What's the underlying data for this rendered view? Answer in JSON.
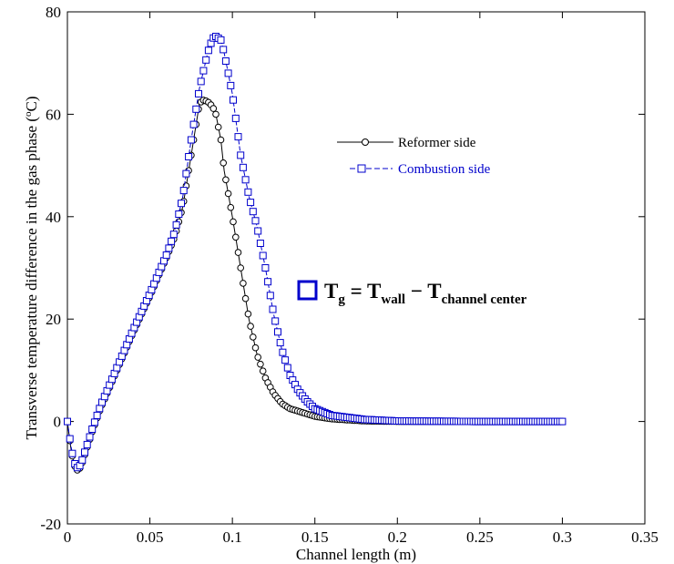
{
  "chart_data": {
    "type": "line",
    "xlabel": "Channel length (m)",
    "ylabel": "Transverse temperature difference in the gas phase (",
    "ylabel_sup": "o",
    "ylabel_unit": "C)",
    "xlim": [
      0,
      0.35
    ],
    "ylim": [
      -20,
      80
    ],
    "x_ticks": [
      "0",
      "0.05",
      "0.1",
      "0.15",
      "0.2",
      "0.25",
      "0.3",
      "0.35"
    ],
    "y_ticks": [
      "-20",
      "0",
      "20",
      "40",
      "60",
      "80"
    ],
    "grid": false,
    "legend_position": "upper-right",
    "series": [
      {
        "name": "Reformer side",
        "color": "#000000",
        "marker": "circle",
        "points": [
          [
            0,
            0
          ],
          [
            0.002,
            -5
          ],
          [
            0.004,
            -8.5
          ],
          [
            0.006,
            -9.5
          ],
          [
            0.008,
            -9
          ],
          [
            0.01,
            -7
          ],
          [
            0.015,
            -2
          ],
          [
            0.02,
            2.5
          ],
          [
            0.03,
            10
          ],
          [
            0.04,
            17.5
          ],
          [
            0.05,
            24.5
          ],
          [
            0.06,
            32
          ],
          [
            0.065,
            36
          ],
          [
            0.07,
            42
          ],
          [
            0.075,
            52
          ],
          [
            0.078,
            58
          ],
          [
            0.08,
            62
          ],
          [
            0.082,
            62.8
          ],
          [
            0.085,
            62.5
          ],
          [
            0.088,
            61.5
          ],
          [
            0.09,
            60
          ],
          [
            0.093,
            55
          ],
          [
            0.095,
            49
          ],
          [
            0.1,
            40
          ],
          [
            0.105,
            30
          ],
          [
            0.11,
            20
          ],
          [
            0.115,
            13
          ],
          [
            0.12,
            8.5
          ],
          [
            0.125,
            5.5
          ],
          [
            0.13,
            3.5
          ],
          [
            0.135,
            2.5
          ],
          [
            0.14,
            2
          ],
          [
            0.145,
            1.5
          ],
          [
            0.15,
            1
          ],
          [
            0.16,
            0.5
          ],
          [
            0.18,
            0.1
          ],
          [
            0.2,
            0
          ],
          [
            0.25,
            0
          ],
          [
            0.3,
            0
          ]
        ]
      },
      {
        "name": "Combustion side",
        "color": "#0000cc",
        "marker": "square",
        "points": [
          [
            0,
            0
          ],
          [
            0.002,
            -4.5
          ],
          [
            0.004,
            -8
          ],
          [
            0.006,
            -9
          ],
          [
            0.008,
            -8.5
          ],
          [
            0.01,
            -6.5
          ],
          [
            0.015,
            -1.5
          ],
          [
            0.02,
            3
          ],
          [
            0.03,
            10.5
          ],
          [
            0.04,
            18
          ],
          [
            0.05,
            25
          ],
          [
            0.06,
            32.5
          ],
          [
            0.065,
            37
          ],
          [
            0.07,
            44
          ],
          [
            0.075,
            55
          ],
          [
            0.08,
            65
          ],
          [
            0.085,
            72
          ],
          [
            0.088,
            74.8
          ],
          [
            0.09,
            75.2
          ],
          [
            0.093,
            74.5
          ],
          [
            0.095,
            72
          ],
          [
            0.1,
            64
          ],
          [
            0.105,
            52
          ],
          [
            0.11,
            44
          ],
          [
            0.115,
            38
          ],
          [
            0.12,
            30
          ],
          [
            0.125,
            21
          ],
          [
            0.13,
            14
          ],
          [
            0.135,
            9
          ],
          [
            0.14,
            6
          ],
          [
            0.145,
            4
          ],
          [
            0.15,
            2.5
          ],
          [
            0.16,
            1.2
          ],
          [
            0.18,
            0.4
          ],
          [
            0.2,
            0.1
          ],
          [
            0.25,
            0
          ],
          [
            0.3,
            0
          ]
        ]
      }
    ],
    "annotation": {
      "T": "T",
      "sub_g": "g",
      "eq": " = T",
      "sub_wall": "wall",
      "minus": " − T",
      "sub_center": "channel center"
    }
  }
}
